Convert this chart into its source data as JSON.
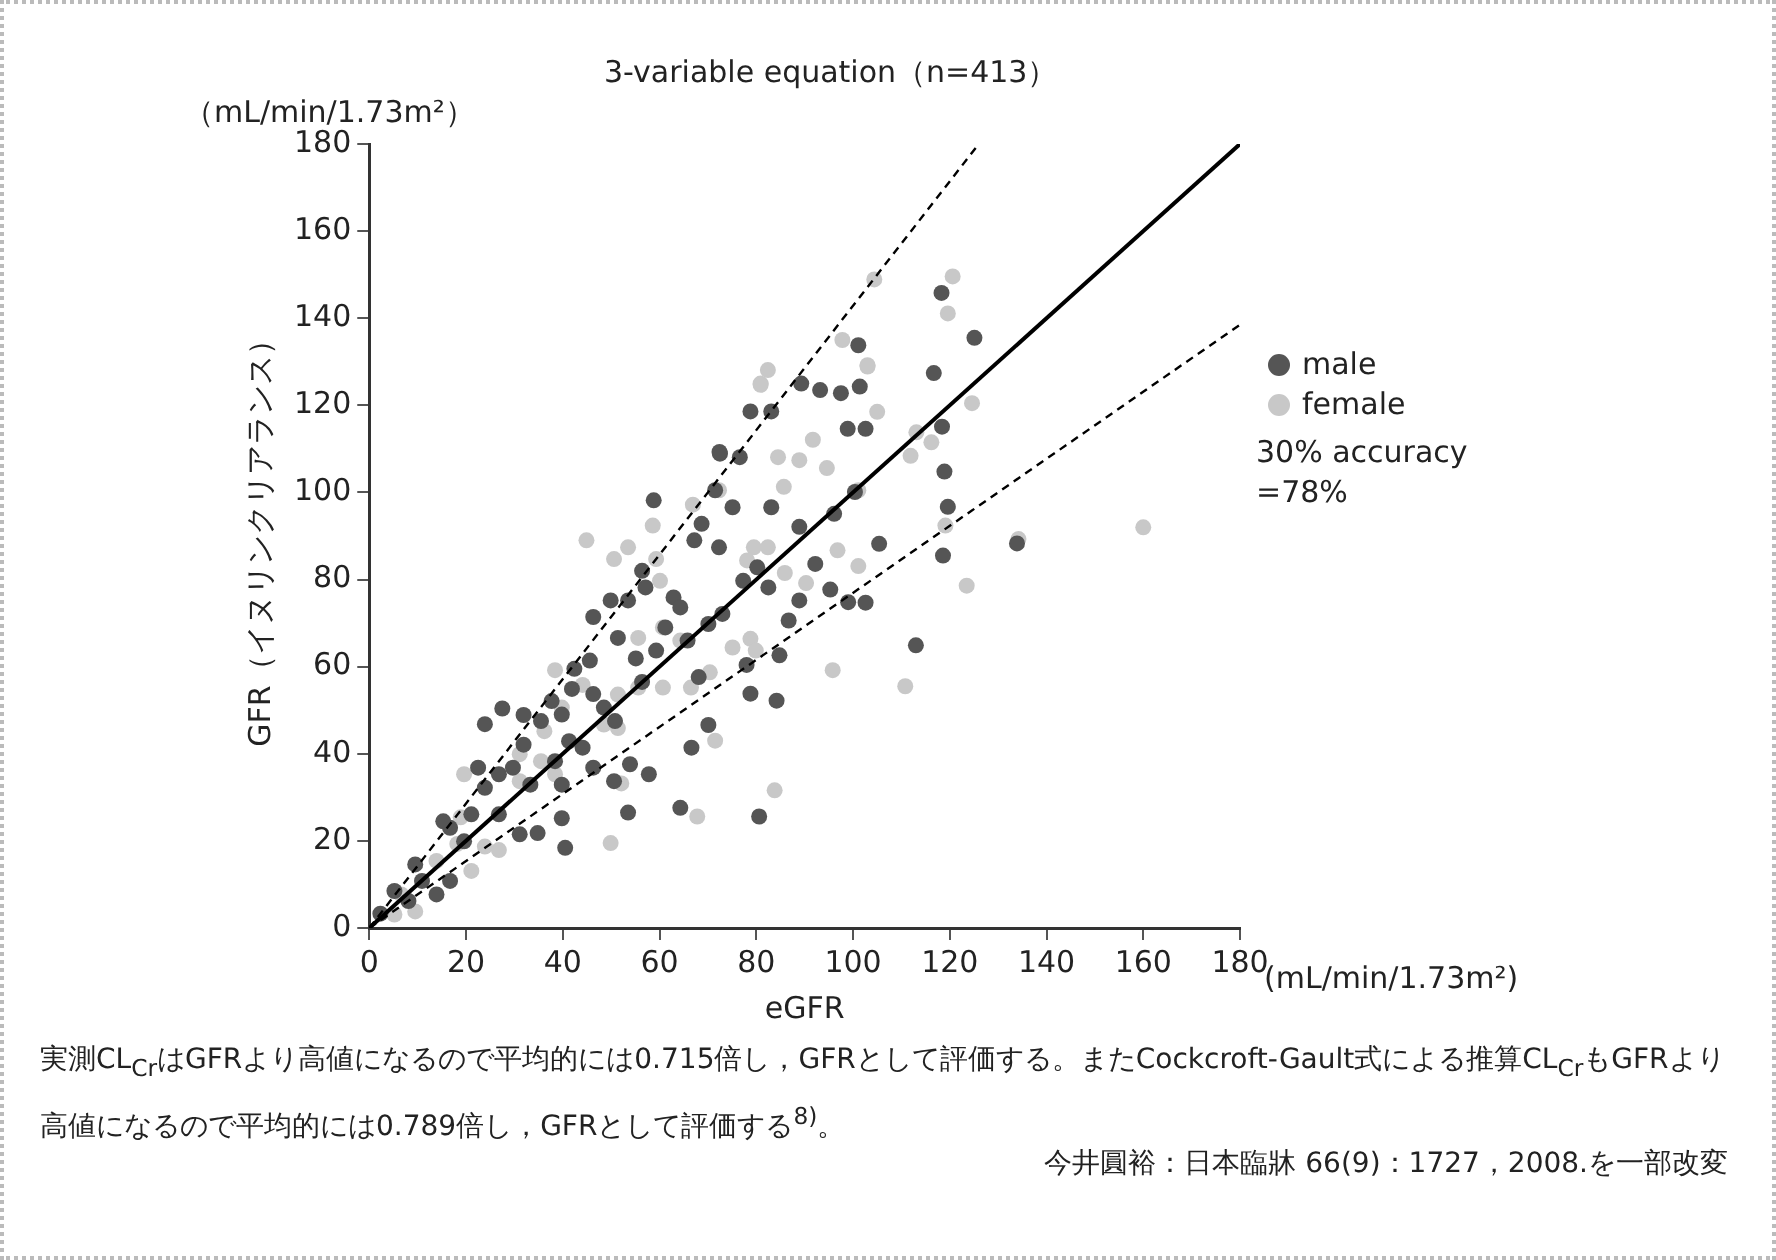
{
  "chart_data": {
    "type": "scatter",
    "title": "3-variable equation（n=413）",
    "xlabel": "eGFR",
    "ylabel": "GFR（イヌリンクリアランス）",
    "annotations": [
      "（mL/min/1.73m²）",
      "(mL/min/1.73m²)",
      "30% accuracy\n=78%",
      "実測CL$_{Cr}$はGFRより高値になるので平均的には0.715倍し，GFRとして評価する。またCockcroft-Gault式による推算CL$_{Cr}$もGFRより高値になるので平均的には0.789倍し，GFRとして評価する$^{8)}$。",
      "今井圓裕：日本臨牀 66(9)：1727，2008.を一部改変"
    ],
    "xlim": [
      0,
      180
    ],
    "ylim": [
      0,
      180
    ],
    "xticks": [
      0,
      20,
      40,
      60,
      80,
      100,
      120,
      140,
      160,
      180
    ],
    "yticks": [
      0,
      20,
      40,
      60,
      80,
      100,
      120,
      140,
      160,
      180
    ],
    "grid": false,
    "legend": "right",
    "series": [
      {
        "name": "male",
        "color": "#555555",
        "type": "scatter",
        "marker": "circle",
        "x": [
          58.8,
          113,
          80.6,
          78.8,
          83.1,
          89.3,
          93.2,
          97.5,
          101.4,
          102.6,
          98.9,
          116.7,
          118.4,
          118.9,
          119.6,
          118.6,
          105.4,
          102.6,
          99,
          95.3,
          92.2,
          88.9,
          86.7,
          84.8,
          84.2,
          78.8,
          78,
          82.5,
          80.2,
          77.3,
          73,
          70.1,
          62.9,
          64.3,
          65.8,
          68.1,
          70.1,
          66.6,
          64.3,
          57.8,
          53.5,
          53.9,
          50.8,
          48.5,
          46.3,
          45.6,
          46.3,
          49.9,
          53.5,
          57.1,
          56.4,
          71.5,
          75.1,
          76.6,
          72.5,
          68.7,
          67.2,
          72.3,
          83.1,
          88.9,
          96.1,
          100.4,
          40.5,
          39.8,
          39.8,
          38.4,
          41.3,
          39.8,
          37.7,
          35.5,
          31.9,
          27.5,
          31.9,
          26.8,
          23.9,
          23.9,
          22.5,
          21.1,
          19.6,
          16.7,
          16.7,
          13.9,
          10.9,
          8.1,
          5.2,
          2.3,
          9.5,
          15.3,
          26.8,
          31.1,
          34.8,
          29.7,
          33.3,
          44.1,
          46.3,
          50.6,
          59.3,
          61.2,
          51.4,
          55.1,
          56.4,
          42.4,
          41.9,
          118.3,
          125.1,
          101.1,
          72.4,
          133.9
        ],
        "values": [
          98.2,
          64.9,
          25.6,
          118.6,
          118.6,
          125,
          123.5,
          122.8,
          124.3,
          114.6,
          114.6,
          127.4,
          115.1,
          104.8,
          96.7,
          85.5,
          88.2,
          74.7,
          74.8,
          77.7,
          83.6,
          75.2,
          70.6,
          62.6,
          52.2,
          53.8,
          60.4,
          78.2,
          82.8,
          79.7,
          72.1,
          69.8,
          75.9,
          73.6,
          66,
          57.6,
          46.6,
          41.4,
          27.6,
          35.3,
          26.5,
          37.6,
          47.5,
          50.6,
          53.7,
          61.4,
          71.4,
          75.2,
          75.2,
          78.2,
          82,
          100.5,
          96.6,
          108.1,
          108.9,
          92.8,
          89,
          87.4,
          96.6,
          92.1,
          95.1,
          100.1,
          18.4,
          25.2,
          32.9,
          38.3,
          42.9,
          49,
          52.1,
          47.5,
          42.1,
          50.4,
          48.9,
          35.3,
          32.2,
          46.8,
          36.8,
          26.1,
          19.9,
          23,
          10.8,
          7.7,
          10.8,
          6.2,
          8.5,
          3.3,
          14.6,
          24.5,
          26.1,
          21.5,
          21.8,
          36.8,
          32.9,
          41.4,
          36.8,
          33.7,
          63.7,
          69,
          66.6,
          61.9,
          56.5,
          59.5,
          54.9,
          145.8,
          135.5,
          133.8,
          109.3,
          88.3
        ]
      },
      {
        "name": "female",
        "color": "#c8c8c8",
        "type": "scatter",
        "marker": "circle",
        "x": [
          82.4,
          80.9,
          103,
          105,
          124.6,
          113.1,
          116.2,
          111.9,
          119.1,
          123.5,
          95.8,
          110.8,
          83.8,
          67.8,
          49.9,
          44.9,
          50.6,
          53.5,
          59.3,
          66.9,
          72.3,
          91.7,
          94.6,
          85.7,
          88.9,
          84.5,
          101.1,
          101.1,
          96.8,
          90.3,
          85.9,
          82.4,
          79.5,
          78.1,
          75.1,
          78.8,
          79.9,
          70.4,
          71.5,
          60.7,
          60.1,
          64.3,
          66.5,
          60.7,
          55.6,
          51.4,
          48.5,
          51.4,
          52.1,
          39.8,
          36.2,
          38.4,
          44.1,
          38.4,
          31.1,
          26.8,
          23.9,
          19.6,
          18.9,
          13.9,
          18.2,
          21.1,
          6.6,
          9.5,
          5.2,
          58.6,
          55.6,
          31.1,
          35.5,
          104.4,
          120.6,
          119.6,
          80.9,
          97.8,
          103,
          160,
          134.2
        ],
        "values": [
          128.1,
          125,
          128.9,
          118.5,
          120.5,
          113.8,
          111.5,
          108.4,
          92.4,
          78.6,
          59.2,
          55.5,
          31.6,
          25.6,
          19.5,
          89,
          84.7,
          87.4,
          84.7,
          97.2,
          100.5,
          112.1,
          105.6,
          101.3,
          107.4,
          108.1,
          100.5,
          83.1,
          86.7,
          79.2,
          81.5,
          87.4,
          87.4,
          84.4,
          64.4,
          66.4,
          63.7,
          58.7,
          43,
          69,
          79.7,
          66,
          55.2,
          55.2,
          66.6,
          53.6,
          46.7,
          45.9,
          33.2,
          50.6,
          45.2,
          59.2,
          55.8,
          35.3,
          33.7,
          17.9,
          18.7,
          35.3,
          25.4,
          15.4,
          19.3,
          13.1,
          7.7,
          3.8,
          3.1,
          92.4,
          55.2,
          39.9,
          38.3,
          148.9,
          149.6,
          141.1,
          124.7,
          135,
          129.2,
          92,
          89.3
        ]
      },
      {
        "type": "line",
        "color": "#000000",
        "line_style": "solid",
        "marker": "none",
        "x": [
          0,
          180
        ],
        "values": [
          0,
          180
        ]
      },
      {
        "type": "line",
        "color": "#000000",
        "line_style": "dashed",
        "marker": "none",
        "x": [
          0,
          126
        ],
        "values": [
          0,
          180
        ]
      },
      {
        "type": "line",
        "color": "#000000",
        "line_style": "dashed",
        "marker": "none",
        "x": [
          0,
          180
        ],
        "values": [
          0,
          138.5
        ]
      }
    ]
  }
}
